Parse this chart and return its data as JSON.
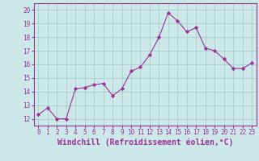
{
  "x": [
    0,
    1,
    2,
    3,
    4,
    5,
    6,
    7,
    8,
    9,
    10,
    11,
    12,
    13,
    14,
    15,
    16,
    17,
    18,
    19,
    20,
    21,
    22,
    23
  ],
  "y": [
    12.3,
    12.8,
    12.0,
    12.0,
    14.2,
    14.3,
    14.5,
    14.6,
    13.7,
    14.2,
    15.5,
    15.8,
    16.7,
    18.0,
    19.8,
    19.2,
    18.4,
    18.7,
    17.2,
    17.0,
    16.4,
    15.7,
    15.7,
    16.1
  ],
  "line_color": "#993399",
  "marker": "D",
  "marker_size": 2.2,
  "bg_color": "#cce8e8",
  "grid_color": "#aacccc",
  "xlabel": "Windchill (Refroidissement éolien,°C)",
  "xlim": [
    -0.5,
    23.5
  ],
  "ylim": [
    11.5,
    20.5
  ],
  "yticks": [
    12,
    13,
    14,
    15,
    16,
    17,
    18,
    19,
    20
  ],
  "xticks": [
    0,
    1,
    2,
    3,
    4,
    5,
    6,
    7,
    8,
    9,
    10,
    11,
    12,
    13,
    14,
    15,
    16,
    17,
    18,
    19,
    20,
    21,
    22,
    23
  ],
  "tick_fontsize": 5.5,
  "xlabel_fontsize": 7.0,
  "spine_color": "#993399"
}
